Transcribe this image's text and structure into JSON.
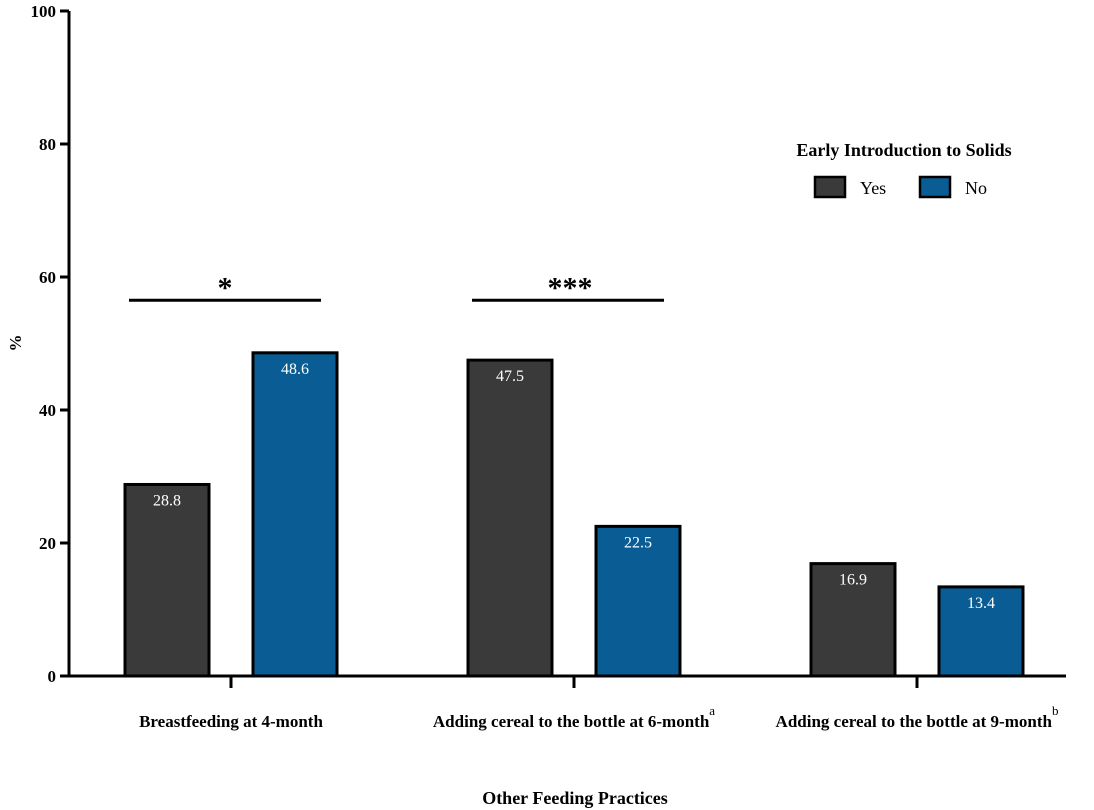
{
  "chart_data": {
    "type": "bar",
    "ylabel": "%",
    "xlabel": "Other Feeding Practices",
    "ylim": [
      0,
      100
    ],
    "yticks": [
      0,
      20,
      40,
      60,
      80,
      100
    ],
    "categories": [
      {
        "label": "Breastfeeding at 4-month",
        "sup": ""
      },
      {
        "label": "Adding cereal to the bottle at 6-month",
        "sup": "a"
      },
      {
        "label": "Adding cereal to the bottle at 9-month",
        "sup": "b"
      }
    ],
    "series": [
      {
        "name": "Yes",
        "color": "#3a3a3a",
        "values": [
          28.8,
          47.5,
          16.9
        ],
        "labels": [
          "28.8",
          "47.5",
          "16.9"
        ]
      },
      {
        "name": "No",
        "color": "#0a5c94",
        "values": [
          48.6,
          22.5,
          13.4
        ],
        "labels": [
          "48.6",
          "22.5",
          "13.4"
        ]
      }
    ],
    "legend": {
      "title": "Early Introduction to Solids",
      "position": "top-right"
    },
    "significance": [
      {
        "category_index": 0,
        "label": "*",
        "y": 56.5
      },
      {
        "category_index": 1,
        "label": "***",
        "y": 56.5
      }
    ],
    "grid": false
  }
}
